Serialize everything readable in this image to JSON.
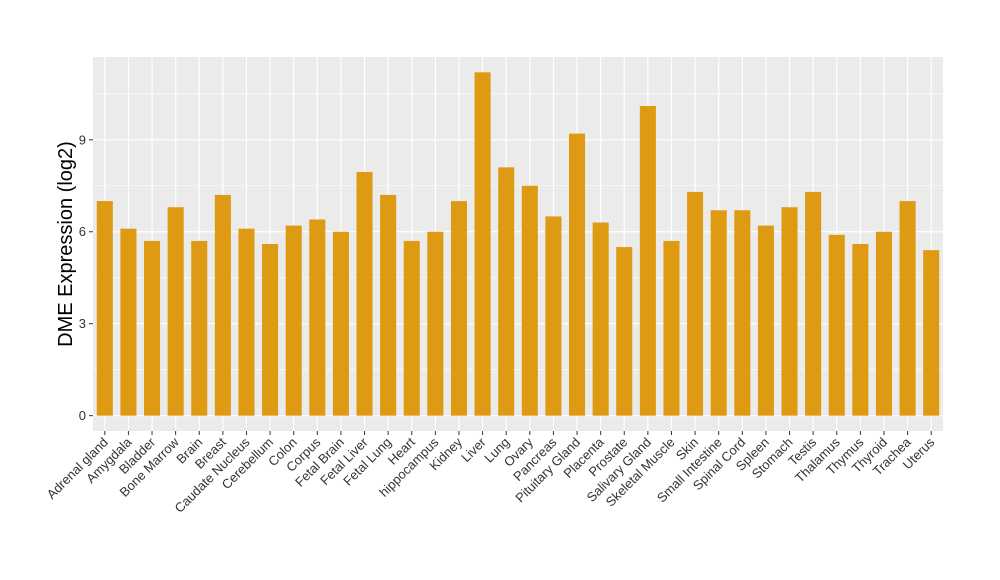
{
  "chart_data": {
    "type": "bar",
    "title": "",
    "xlabel": "",
    "ylabel": "DME Expression (log2)",
    "ylim": [
      -0.5,
      11.7
    ],
    "yticks": [
      0,
      3,
      6,
      9
    ],
    "grid": true,
    "bar_color": "#DE9A13",
    "panel_color": "#EBEBEB",
    "grid_color": "#FFFFFF",
    "categories": [
      "Adrenal gland",
      "Amygdala",
      "Bladder",
      "Bone Marrow",
      "Brain",
      "Breast",
      "Caudate Nucleus",
      "Cerebellum",
      "Colon",
      "Corpus",
      "Fetal Brain",
      "Fetal Liver",
      "Fetal Lung",
      "Heart",
      "hippocampus",
      "Kidney",
      "Liver",
      "Lung",
      "Ovary",
      "Pancreas",
      "Pituitary Gland",
      "Placenta",
      "Prostate",
      "Salivary Gland",
      "Skeletal Muscle",
      "Skin",
      "Small Intestine",
      "Spinal Cord",
      "Spleen",
      "Stomach",
      "Testis",
      "Thalamus",
      "Thymus",
      "Thyroid",
      "Trachea",
      "Uterus"
    ],
    "values": [
      7.0,
      6.1,
      5.7,
      6.8,
      5.7,
      7.2,
      6.1,
      5.6,
      6.2,
      6.4,
      6.0,
      7.95,
      7.2,
      5.7,
      6.0,
      7.0,
      11.2,
      8.1,
      7.5,
      6.5,
      9.2,
      6.3,
      5.5,
      10.1,
      5.7,
      7.3,
      6.7,
      6.7,
      6.2,
      6.8,
      7.3,
      5.9,
      5.6,
      6.0,
      7.0,
      5.4
    ]
  }
}
